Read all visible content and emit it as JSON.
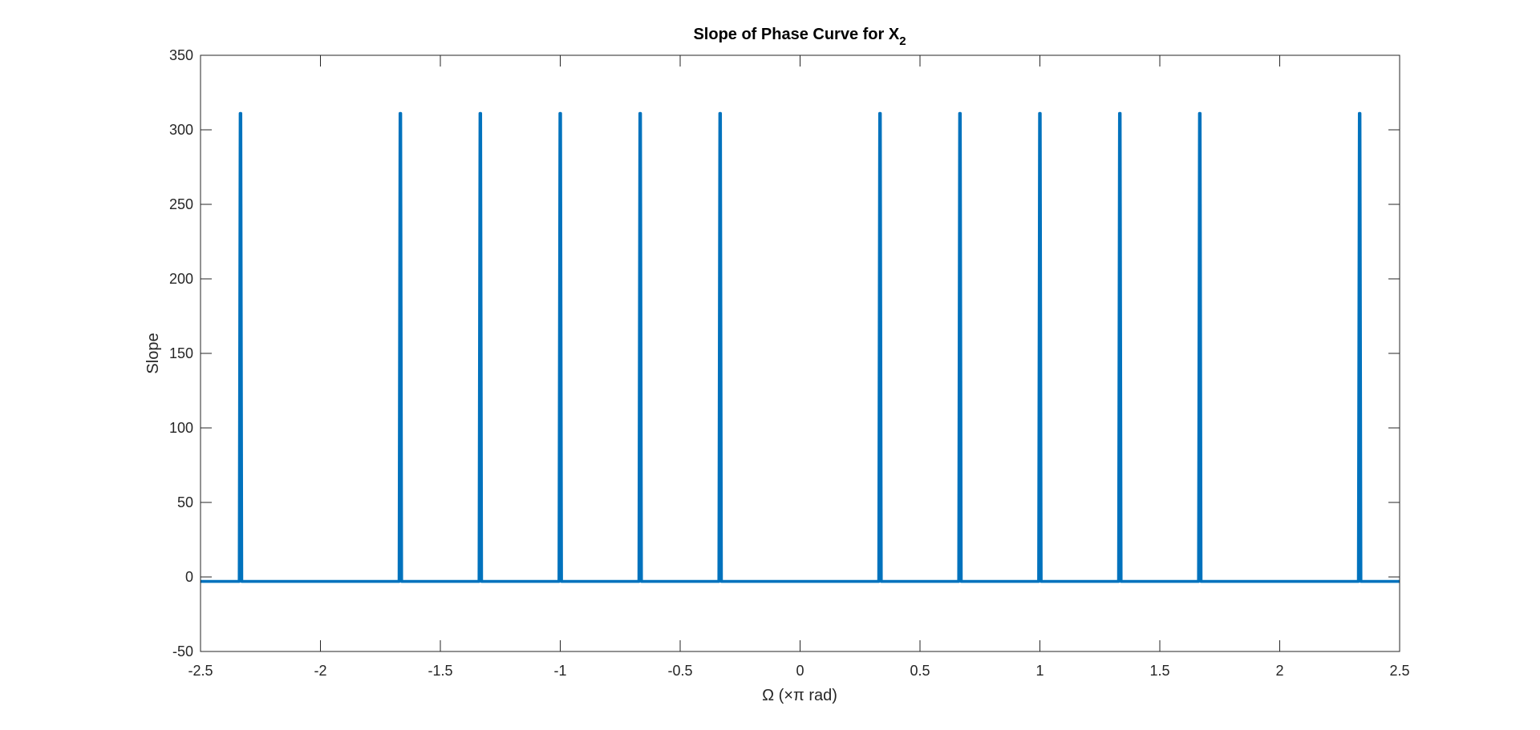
{
  "chart_data": {
    "type": "line",
    "title": "Slope of Phase Curve for X",
    "title_subscript": "2",
    "xlabel": "Ω (×π rad)",
    "ylabel": "Slope",
    "xlim": [
      -2.5,
      2.5
    ],
    "ylim": [
      -50,
      350
    ],
    "xticks": [
      -2.5,
      -2,
      -1.5,
      -1,
      -0.5,
      0,
      0.5,
      1,
      1.5,
      2,
      2.5
    ],
    "yticks": [
      -50,
      0,
      50,
      100,
      150,
      200,
      250,
      300,
      350
    ],
    "xtick_labels": [
      "-2.5",
      "-2",
      "-1.5",
      "-1",
      "-0.5",
      "0",
      "0.5",
      "1",
      "1.5",
      "2",
      "2.5"
    ],
    "ytick_labels": [
      "-50",
      "0",
      "50",
      "100",
      "150",
      "200",
      "250",
      "300",
      "350"
    ],
    "grid": false,
    "series": [
      {
        "color": "#0072BD",
        "baseline": -3,
        "x_range": [
          -2.5,
          2.5
        ],
        "spike_peak": 311,
        "spike_x": [
          -2.3333,
          -1.6667,
          -1.3333,
          -1.0,
          -0.6667,
          -0.3333,
          0.3333,
          0.6667,
          1.0,
          1.3333,
          1.6667,
          2.3333
        ]
      }
    ]
  }
}
